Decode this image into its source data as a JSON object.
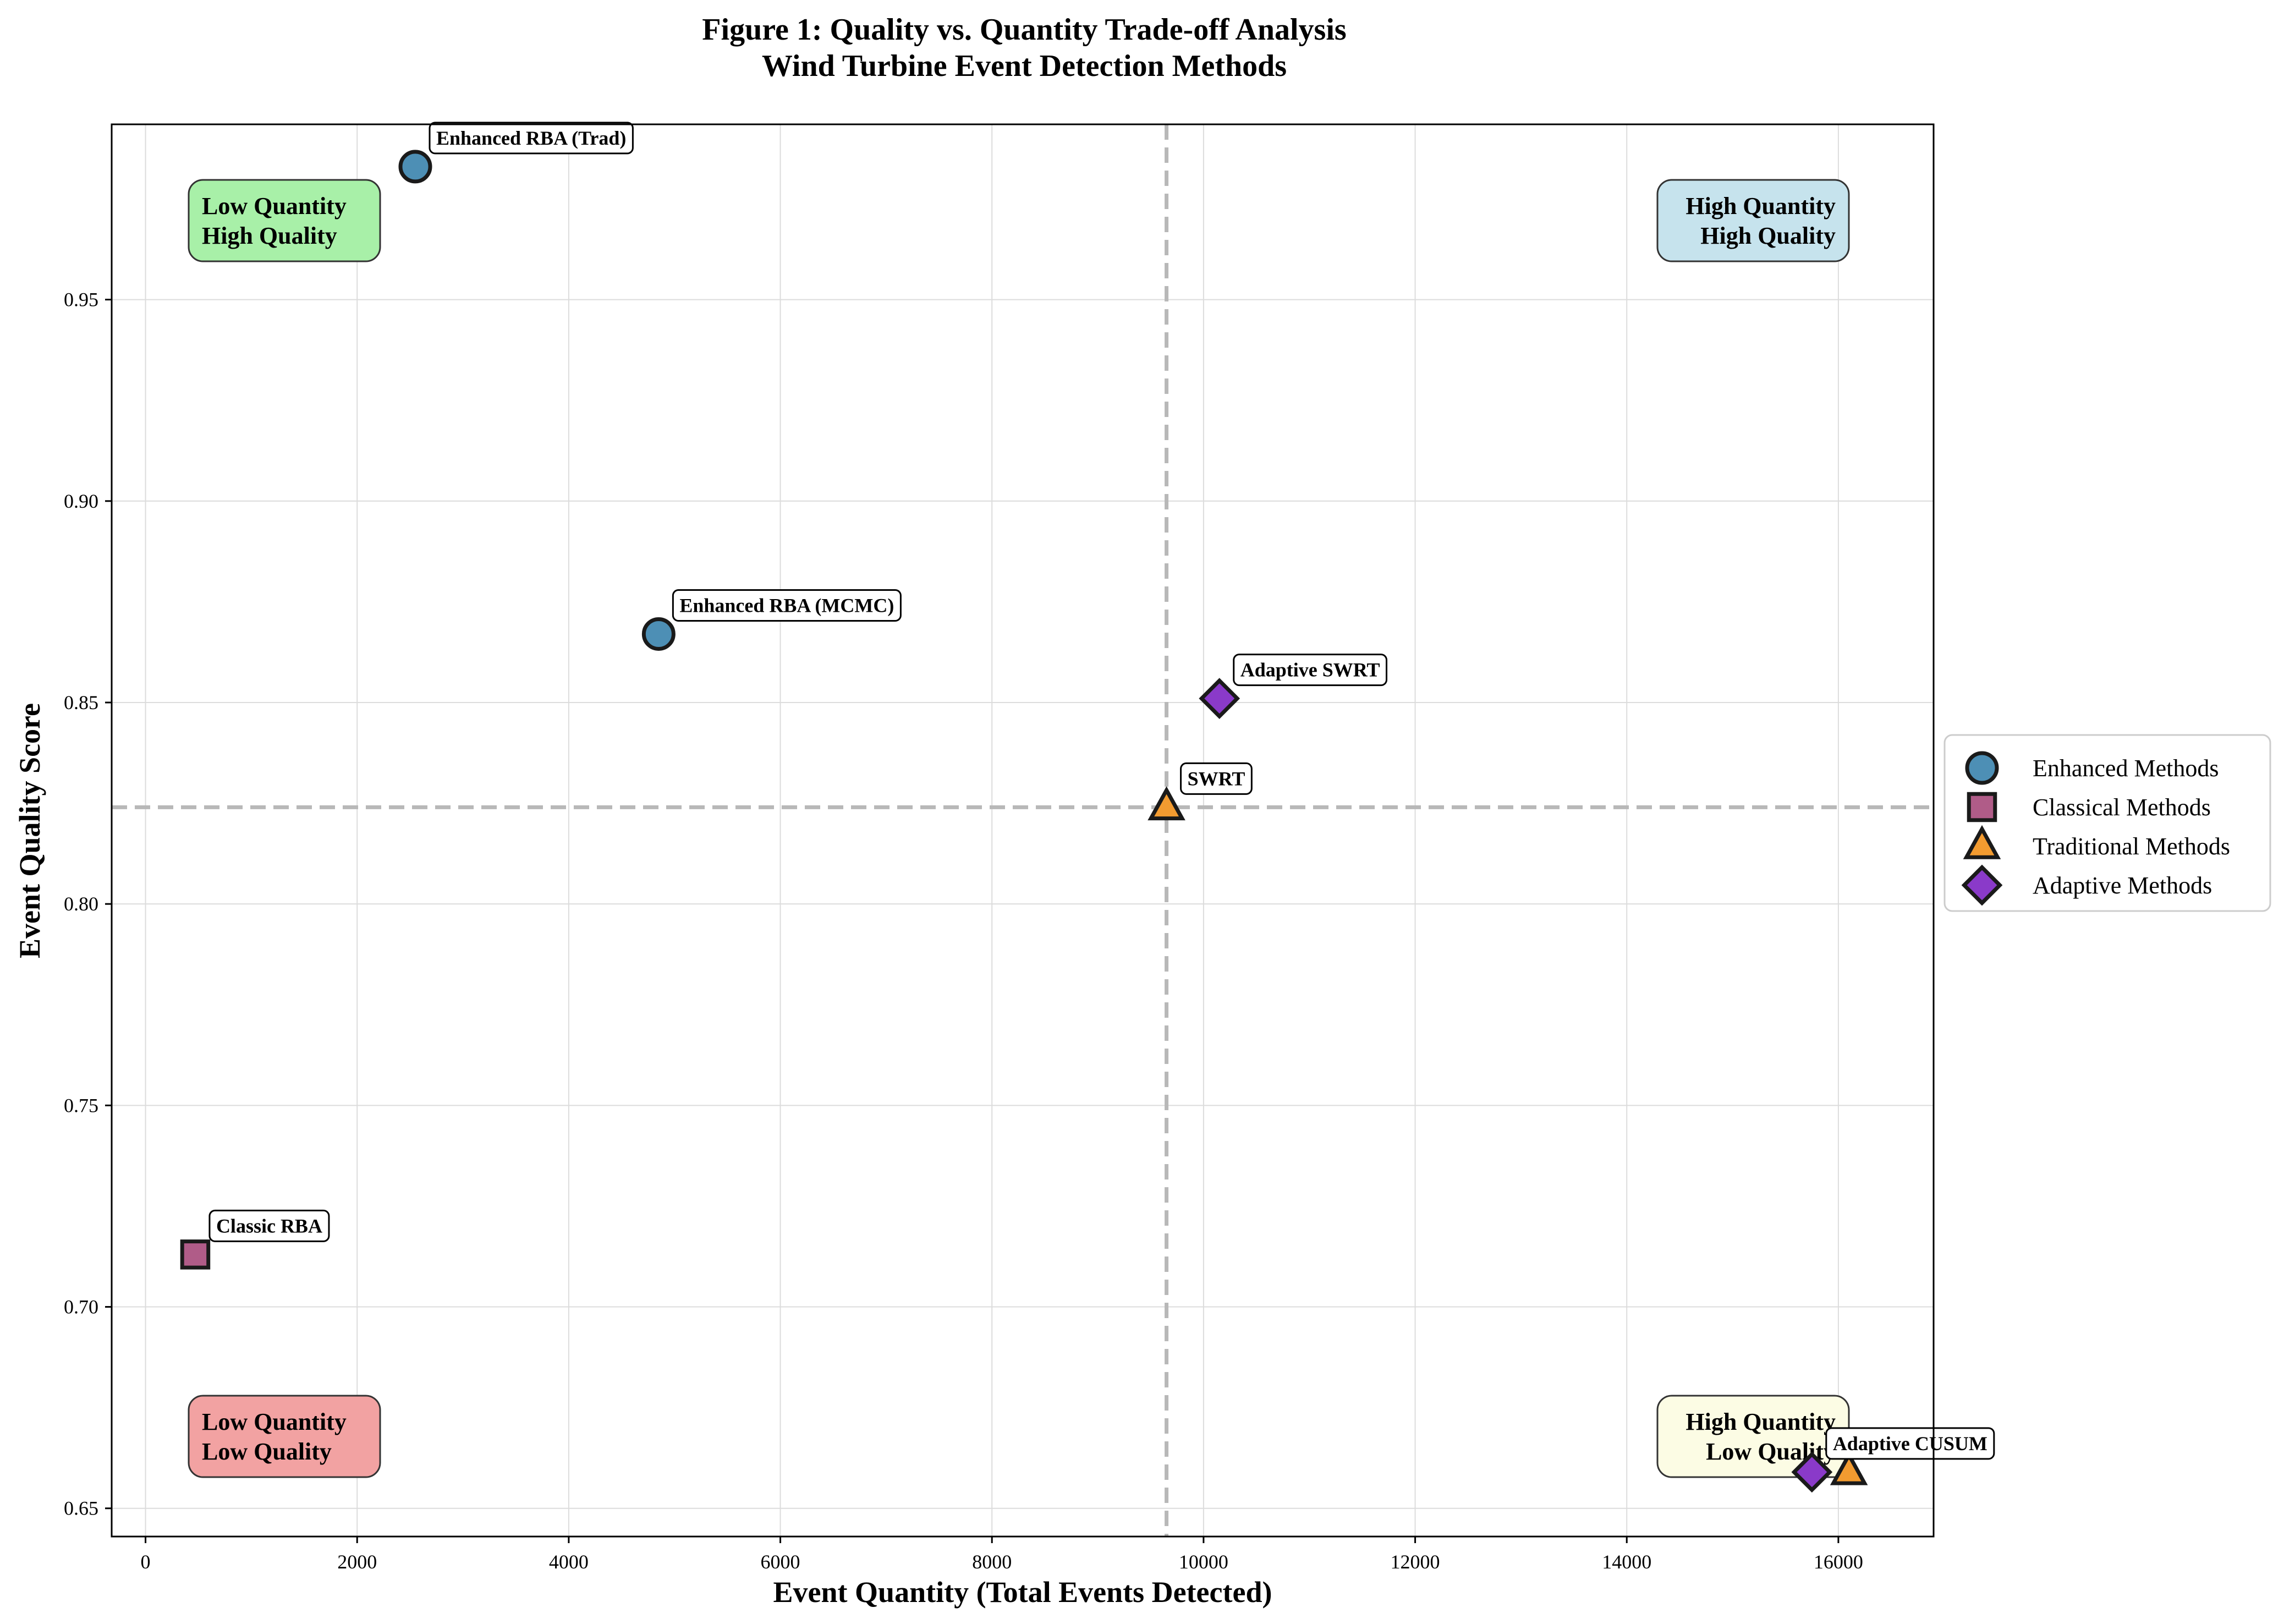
{
  "chart_data": {
    "type": "scatter",
    "title": "Figure 1: Quality vs. Quantity Trade-off Analysis",
    "subtitle": "Wind Turbine Event Detection Methods",
    "xlabel": "Event Quantity (Total Events Detected)",
    "ylabel": "Event Quality Score",
    "xlim": [
      -320,
      16900
    ],
    "ylim": [
      0.643,
      0.9935
    ],
    "xticks": [
      0,
      2000,
      4000,
      6000,
      8000,
      10000,
      12000,
      14000,
      16000
    ],
    "yticks": [
      0.65,
      0.7,
      0.75,
      0.8,
      0.85,
      0.9,
      0.95
    ],
    "ytick_labels": [
      "0.65",
      "0.70",
      "0.75",
      "0.80",
      "0.85",
      "0.90",
      "0.95"
    ],
    "grid": true,
    "legend_position": "right",
    "reference_lines": {
      "x": 9650,
      "y": 0.824
    },
    "series": [
      {
        "name": "Enhanced Methods",
        "marker": "circle",
        "color": "#4d8fb5",
        "points": [
          {
            "label": "Enhanced RBA (Trad)",
            "x": 2550,
            "y": 0.983
          },
          {
            "label": "Enhanced RBA (MCMC)",
            "x": 4850,
            "y": 0.867
          }
        ]
      },
      {
        "name": "Classical Methods",
        "marker": "square",
        "color": "#b05c88",
        "points": [
          {
            "label": "Classic RBA",
            "x": 470,
            "y": 0.713
          }
        ]
      },
      {
        "name": "Traditional Methods",
        "marker": "triangle",
        "color": "#f29b30",
        "points": [
          {
            "label": "SWRT",
            "x": 9650,
            "y": 0.824
          },
          {
            "label": "",
            "x": 16100,
            "y": 0.659
          }
        ]
      },
      {
        "name": "Adaptive Methods",
        "marker": "diamond",
        "color": "#8a3ac9",
        "points": [
          {
            "label": "Adaptive SWRT",
            "x": 10150,
            "y": 0.851
          },
          {
            "label": "Adaptive CUSUM",
            "x": 15750,
            "y": 0.659
          }
        ]
      }
    ],
    "quadrant_labels": [
      {
        "id": "low-quantity-high-quality",
        "lines": [
          "Low Quantity",
          "High Quality"
        ],
        "color": "#a8f0a8",
        "align": "left"
      },
      {
        "id": "high-quantity-high-quality",
        "lines": [
          "High Quantity",
          "High Quality"
        ],
        "color": "#c6e3ed",
        "align": "right"
      },
      {
        "id": "low-quantity-low-quality",
        "lines": [
          "Low Quantity",
          "Low Quality"
        ],
        "color": "#f2a2a2",
        "align": "left"
      },
      {
        "id": "high-quantity-low-quality",
        "lines": [
          "High Quantity",
          "Low Quality"
        ],
        "color": "#fcfce4",
        "align": "right"
      }
    ]
  }
}
